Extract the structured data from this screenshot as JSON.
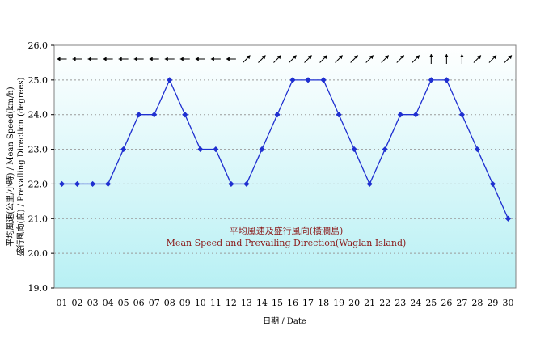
{
  "chart_data": {
    "type": "line",
    "title": "",
    "xlabel": "日期 / Date",
    "ylabel_line1": "平均風速(公里/小時) / Mean Speed(km/h)",
    "ylabel_line2": "盛行風向(度) / Prevailing Direction (degrees)",
    "annotation_zh": "平均風速及盛行風向(橫瀾島)",
    "annotation_en": "Mean Speed and Prevailing Direction(Waglan Island)",
    "ylim": [
      19.0,
      26.0
    ],
    "yticks": [
      "19.0",
      "20.0",
      "21.0",
      "22.0",
      "23.0",
      "24.0",
      "25.0",
      "26.0"
    ],
    "grid": true,
    "categories": [
      "01",
      "02",
      "03",
      "04",
      "05",
      "06",
      "07",
      "08",
      "09",
      "10",
      "11",
      "12",
      "13",
      "14",
      "15",
      "16",
      "17",
      "18",
      "19",
      "20",
      "21",
      "22",
      "23",
      "24",
      "25",
      "26",
      "27",
      "28",
      "29",
      "30"
    ],
    "series": [
      {
        "values": [
          22,
          22,
          22,
          22,
          23,
          24,
          24,
          25,
          24,
          23,
          23,
          22,
          22,
          23,
          24,
          25,
          25,
          25,
          24,
          23,
          22,
          23,
          24,
          24,
          25,
          25,
          24,
          23,
          22,
          21
        ],
        "color": "#1f2fd0"
      }
    ],
    "wind_direction_arrows": [
      "W",
      "W",
      "W",
      "W",
      "W",
      "W",
      "W",
      "W",
      "W",
      "W",
      "W",
      "W",
      "NE",
      "NE",
      "NE",
      "NE",
      "NE",
      "NE",
      "NE",
      "NE",
      "NE",
      "NE",
      "NE",
      "NE",
      "N",
      "N",
      "N",
      "NE",
      "NE",
      "NE"
    ],
    "colors": {
      "plot_top": "#ffffff",
      "plot_bottom": "#b8f0f4",
      "line": "#1f2fd0",
      "annotation": "#8b1a1a"
    }
  }
}
